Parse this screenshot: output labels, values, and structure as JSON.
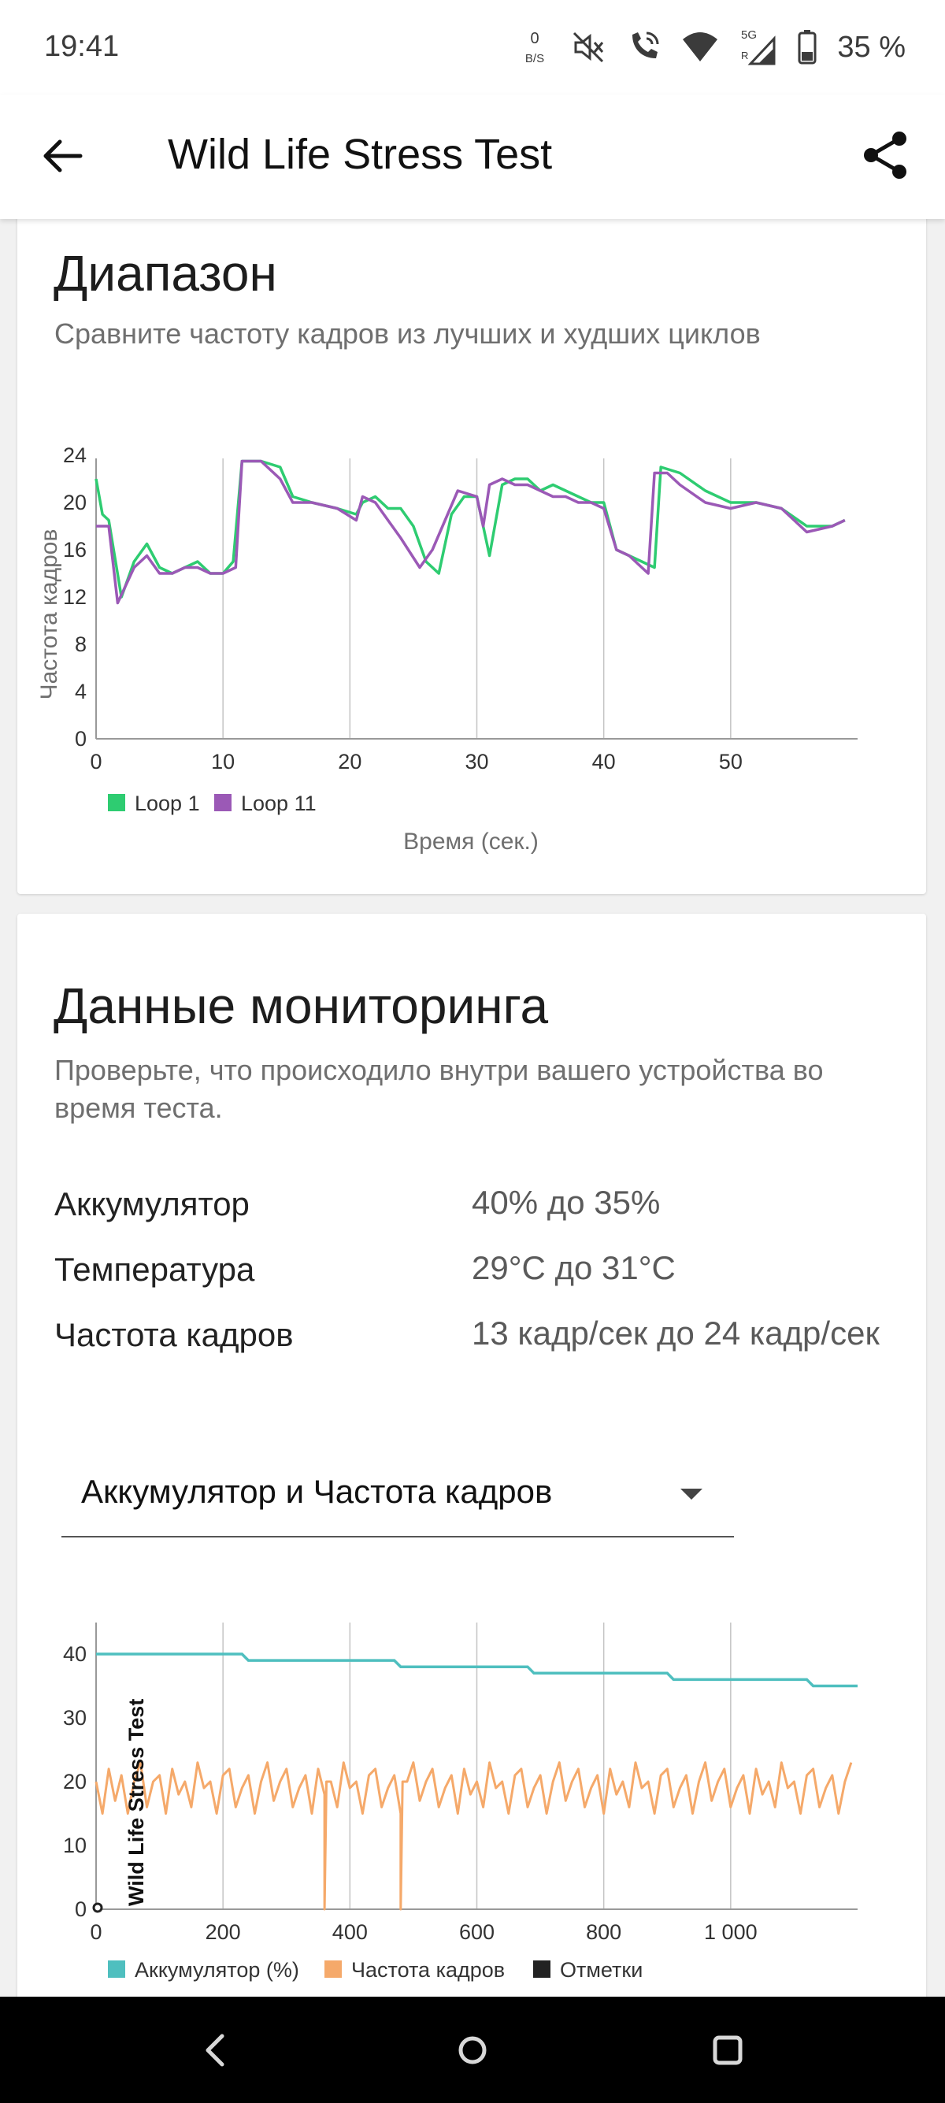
{
  "status_bar": {
    "time": "19:41",
    "net_speed_top": "0",
    "net_speed_unit": "B/S",
    "signal_label": "5G",
    "roaming_label": "R",
    "battery": "35 %"
  },
  "app_bar": {
    "title": "Wild Life Stress Test"
  },
  "range_card": {
    "title": "Диапазон",
    "subtitle": "Сравните частоту кадров из лучших и худших циклов",
    "chart_data": {
      "type": "line",
      "ylabel": "Частота кадров",
      "xlabel": "Время (сек.)",
      "xlim": [
        0,
        60
      ],
      "ylim": [
        0,
        24
      ],
      "x_ticks": [
        "0",
        "10",
        "20",
        "30",
        "40",
        "50"
      ],
      "y_ticks": [
        "0",
        "4",
        "8",
        "12",
        "16",
        "20",
        "24"
      ],
      "legend_position": "bottom-left",
      "series": [
        {
          "name": "Loop 1",
          "color": "#2ecc71",
          "x": [
            0,
            0.5,
            1,
            2,
            3,
            4,
            5,
            6,
            7,
            8,
            9,
            10,
            10.8,
            11.5,
            13,
            14.5,
            15.5,
            17,
            19,
            20.5,
            21,
            22,
            23,
            24,
            25,
            26,
            27,
            28,
            29,
            30,
            31,
            32,
            33,
            34,
            35,
            36,
            37,
            38,
            39,
            40,
            41,
            42,
            43,
            44,
            44.5,
            46,
            48,
            50,
            52,
            54,
            56,
            58,
            59
          ],
          "values": [
            22,
            19,
            18.5,
            12,
            15,
            16.5,
            14.5,
            14,
            14.5,
            15,
            14,
            14,
            15,
            23.5,
            23.5,
            23,
            20.5,
            20,
            19.5,
            19,
            20,
            20.5,
            19.5,
            19.5,
            18,
            15,
            14,
            19,
            20.5,
            20.5,
            15.5,
            21.5,
            22,
            22,
            21,
            21.5,
            21,
            20.5,
            20,
            20,
            16,
            15.5,
            15,
            14.5,
            23,
            22.5,
            21,
            20,
            20,
            19.5,
            18,
            18,
            18.5
          ]
        },
        {
          "name": "Loop 11",
          "color": "#9b59b6",
          "x": [
            0,
            1,
            1.7,
            3,
            4,
            5,
            6,
            7,
            8,
            9,
            10,
            11,
            11.5,
            13,
            14.5,
            15.5,
            17,
            19,
            20.5,
            21,
            22,
            23,
            24,
            25.5,
            26.5,
            27.5,
            28.5,
            30,
            30.5,
            31,
            32,
            33,
            34,
            35,
            36,
            37,
            38,
            39,
            40,
            41,
            42,
            43,
            43.5,
            44,
            45,
            46,
            48,
            50,
            52,
            54,
            56,
            58,
            59
          ],
          "values": [
            18,
            18,
            11.5,
            14.5,
            15.5,
            14,
            14,
            14.5,
            14.5,
            14,
            14,
            14.5,
            23.5,
            23.5,
            22,
            20,
            20,
            19.5,
            18.5,
            20.5,
            20,
            18.5,
            17,
            14.5,
            16,
            18.5,
            21,
            20.5,
            18,
            21.5,
            22,
            21.5,
            21.5,
            21,
            20.5,
            20.5,
            20,
            20,
            19.5,
            16,
            15.5,
            14.5,
            14,
            22.5,
            22.5,
            21.5,
            20,
            19.5,
            20,
            19.5,
            17.5,
            18,
            18.5
          ]
        }
      ]
    }
  },
  "monitoring_card": {
    "title": "Данные мониторинга",
    "subtitle": "Проверьте, что происходило внутри вашего устройства во время теста.",
    "rows": [
      {
        "label": "Аккумулятор",
        "value": "40% до 35%"
      },
      {
        "label": "Температура",
        "value": "29°C до 31°C"
      },
      {
        "label": "Частота кадров",
        "value": "13 кадр/сек до 24 кадр/сек"
      }
    ],
    "dropdown": {
      "selected": "Аккумулятор и Частота кадров"
    },
    "chart_data": {
      "type": "line",
      "xlim": [
        0,
        1200
      ],
      "ylim": [
        0,
        40
      ],
      "x_ticks": [
        "0",
        "200",
        "400",
        "600",
        "800",
        "1 000"
      ],
      "y_ticks": [
        "0",
        "10",
        "20",
        "30",
        "40"
      ],
      "annotation": "Wild Life Stress Test",
      "legend_position": "bottom-left",
      "series": [
        {
          "name": "Аккумулятор (%)",
          "color": "#4fbfbf",
          "x": [
            0,
            230,
            240,
            470,
            480,
            680,
            690,
            900,
            910,
            1120,
            1130,
            1200
          ],
          "values": [
            40,
            40,
            39,
            39,
            38,
            38,
            37,
            37,
            36,
            36,
            35,
            35
          ]
        },
        {
          "name": "Частота кадров",
          "color": "#f5a96a",
          "x_start": 0,
          "x_step": 10,
          "values": [
            20,
            15,
            22,
            17,
            21,
            15,
            20,
            23,
            16,
            20,
            21,
            15,
            22,
            18,
            20,
            16,
            23,
            19,
            20,
            15,
            21,
            22,
            16,
            19,
            21,
            15,
            20,
            23,
            17,
            20,
            22,
            16,
            19,
            21,
            15,
            22,
            18,
            20,
            16,
            23,
            19,
            20,
            15,
            21,
            22,
            16,
            19,
            21,
            15,
            20,
            23,
            17,
            20,
            22,
            16,
            19,
            21,
            15,
            22,
            18,
            20,
            16,
            23,
            19,
            20,
            15,
            21,
            22,
            16,
            19,
            21,
            15,
            20,
            23,
            17,
            20,
            22,
            16,
            19,
            21,
            15,
            22,
            18,
            20,
            16,
            23,
            19,
            20,
            15,
            21,
            22,
            16,
            19,
            21,
            15,
            20,
            23,
            17,
            20,
            22,
            16,
            19,
            21,
            15,
            22,
            18,
            20,
            16,
            23,
            19,
            20,
            15,
            21,
            22,
            16,
            19,
            21,
            15,
            20,
            23
          ],
          "dips": [
            [
              360,
              0
            ],
            [
              480,
              0
            ]
          ]
        },
        {
          "name": "Отметки",
          "color": "#222222",
          "points": [
            [
              0,
              0
            ]
          ]
        }
      ]
    }
  }
}
